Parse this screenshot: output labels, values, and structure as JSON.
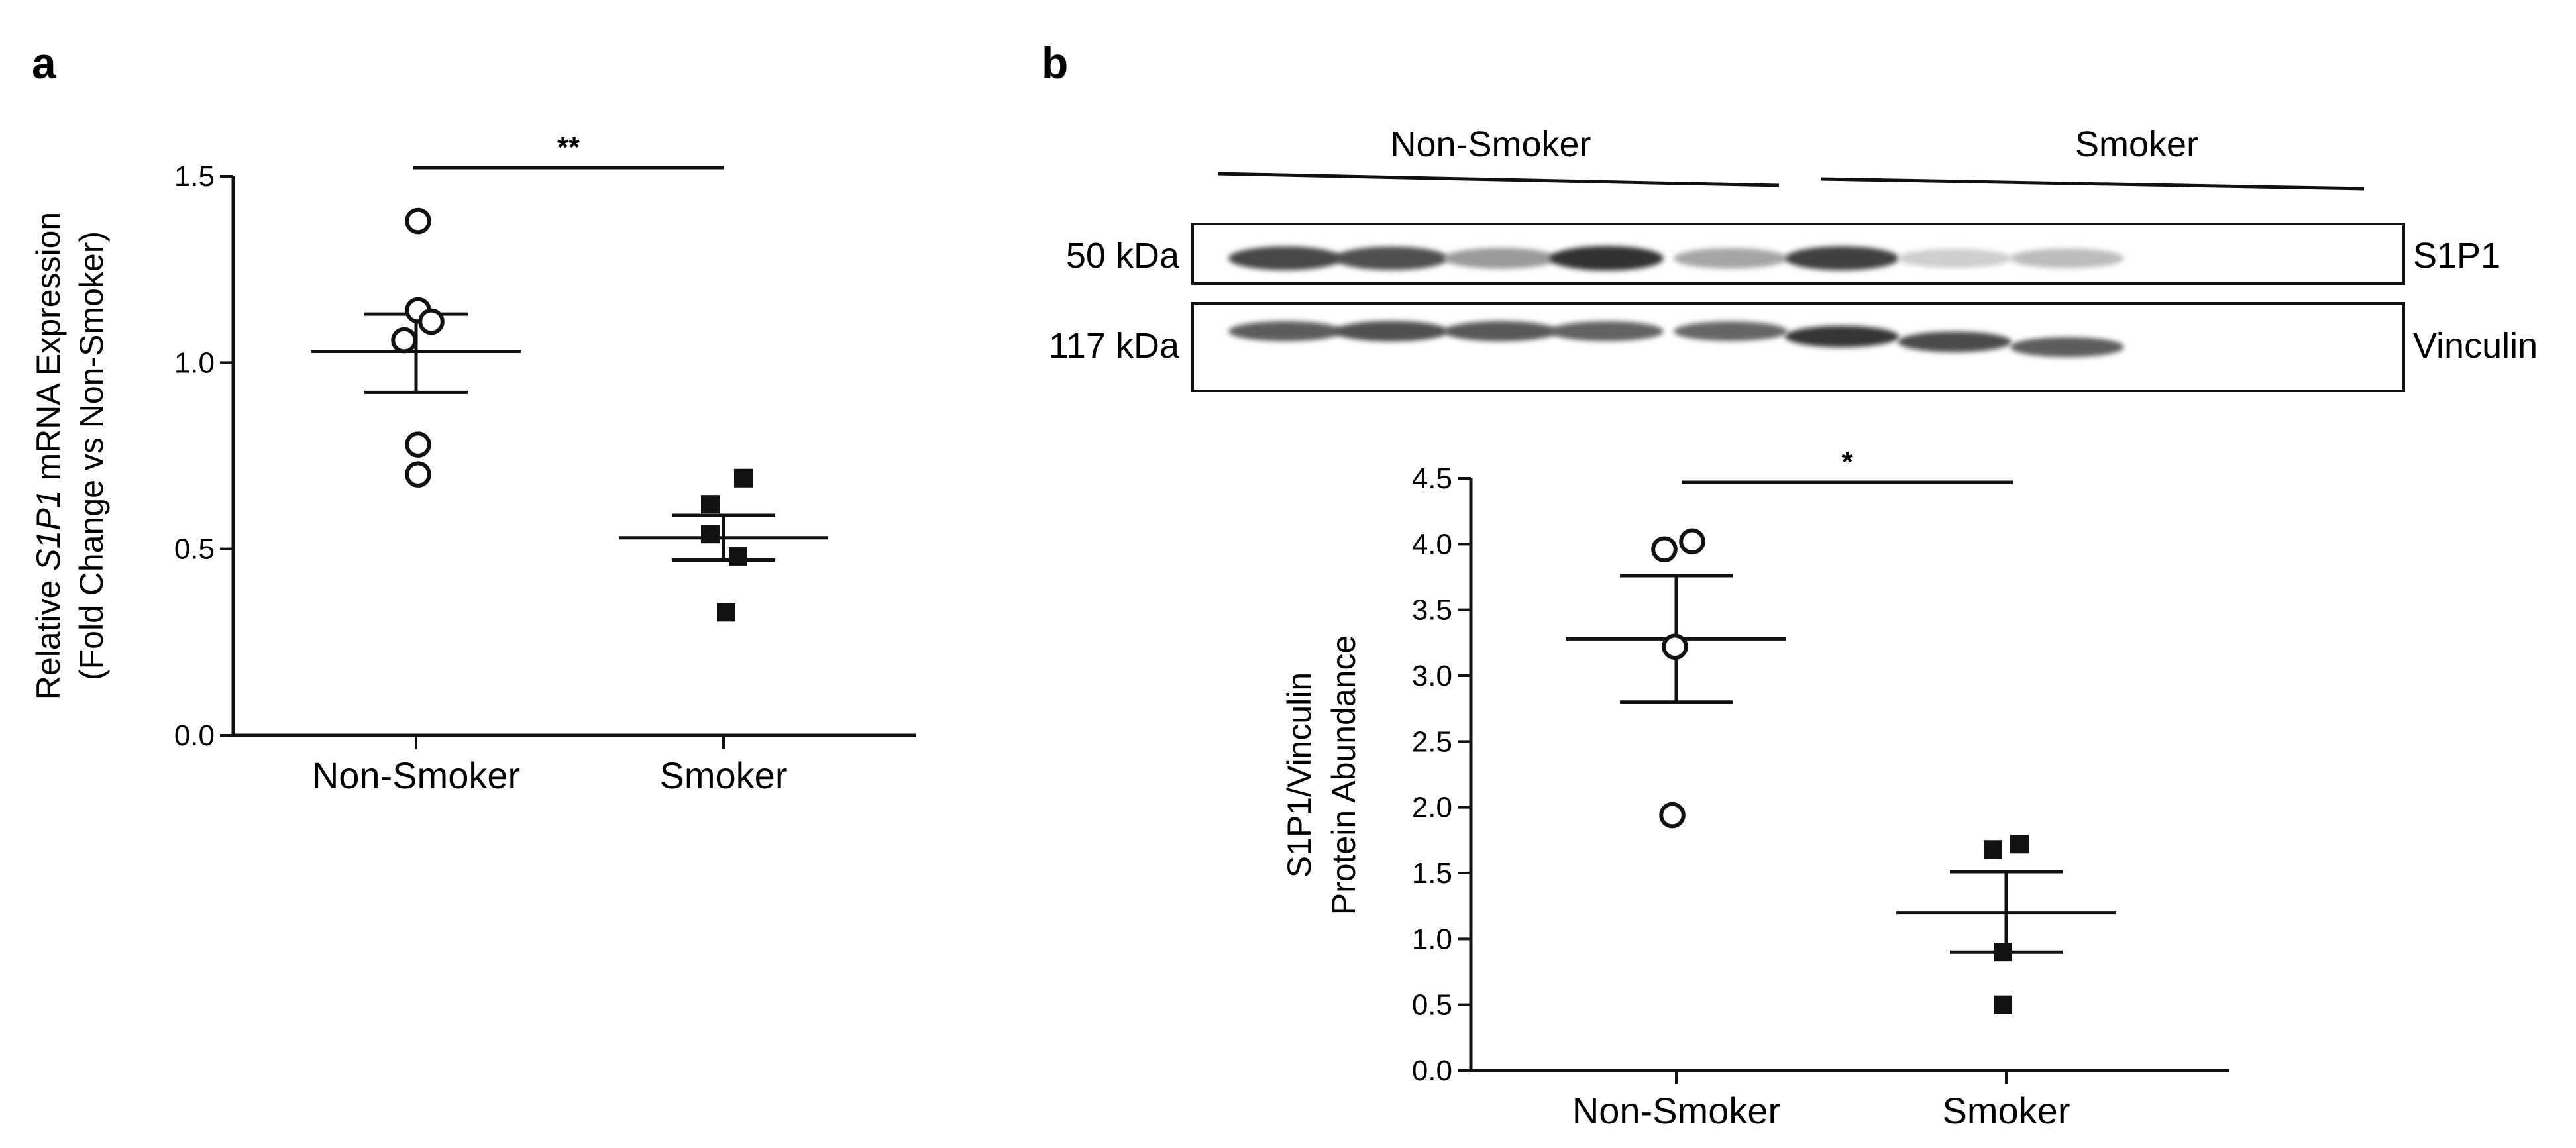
{
  "panels": {
    "a": {
      "letter": "a"
    },
    "b": {
      "letter": "b",
      "blot": {
        "group_labels": [
          "Non-Smoker",
          "Smoker"
        ],
        "rows": [
          {
            "size": "50 kDa",
            "name": "S1P1",
            "bands": [
              0.82,
              0.78,
              0.45,
              0.92,
              0.4,
              0.85,
              0.22,
              0.3
            ]
          },
          {
            "size": "117 kDa",
            "name": "Vinculin",
            "bands": [
              0.72,
              0.78,
              0.74,
              0.7,
              0.68,
              0.9,
              0.8,
              0.72
            ]
          }
        ]
      }
    }
  },
  "chart_data": [
    {
      "type": "scatter",
      "title": "",
      "xlabel": "",
      "ylabel": "Relative S1P1 mRNA Expression (Fold Change vs Non-Smoker)",
      "ylabel_parts": {
        "pre": "Relative ",
        "italic": "S1P1",
        "post": " mRNA Expression",
        "line2": "(Fold Change vs Non-Smoker)"
      },
      "categories": [
        "Non-Smoker",
        "Smoker"
      ],
      "ylim": [
        0.0,
        1.5
      ],
      "yticks": [
        "0.0",
        "0.5",
        "1.0",
        "1.5"
      ],
      "significance": "**",
      "series": [
        {
          "category": "Non-Smoker",
          "marker": "open-circle",
          "values": [
            1.38,
            1.14,
            1.11,
            1.06,
            0.78,
            0.7
          ],
          "mean": 1.03,
          "sem_low": 0.92,
          "sem_high": 1.13
        },
        {
          "category": "Smoker",
          "marker": "filled-square",
          "values": [
            0.69,
            0.62,
            0.54,
            0.48,
            0.33
          ],
          "mean": 0.53,
          "sem_low": 0.47,
          "sem_high": 0.59
        }
      ]
    },
    {
      "type": "scatter",
      "title": "",
      "xlabel": "",
      "ylabel": "S1P1/Vinculin Protein Abundance",
      "ylabel_parts": {
        "line1": "S1P1/Vinculin",
        "line2": "Protein Abundance"
      },
      "categories": [
        "Non-Smoker",
        "Smoker"
      ],
      "ylim": [
        0.0,
        4.5
      ],
      "yticks": [
        "0.0",
        "0.5",
        "1.0",
        "1.5",
        "2.0",
        "2.5",
        "3.0",
        "3.5",
        "4.0",
        "4.5"
      ],
      "significance": "*",
      "series": [
        {
          "category": "Non-Smoker",
          "marker": "open-circle",
          "values": [
            4.02,
            3.96,
            3.22,
            1.94
          ],
          "mean": 3.28,
          "sem_low": 2.8,
          "sem_high": 3.76
        },
        {
          "category": "Smoker",
          "marker": "filled-square",
          "values": [
            1.72,
            1.68,
            0.9,
            0.5
          ],
          "mean": 1.2,
          "sem_low": 0.9,
          "sem_high": 1.51
        }
      ]
    }
  ]
}
